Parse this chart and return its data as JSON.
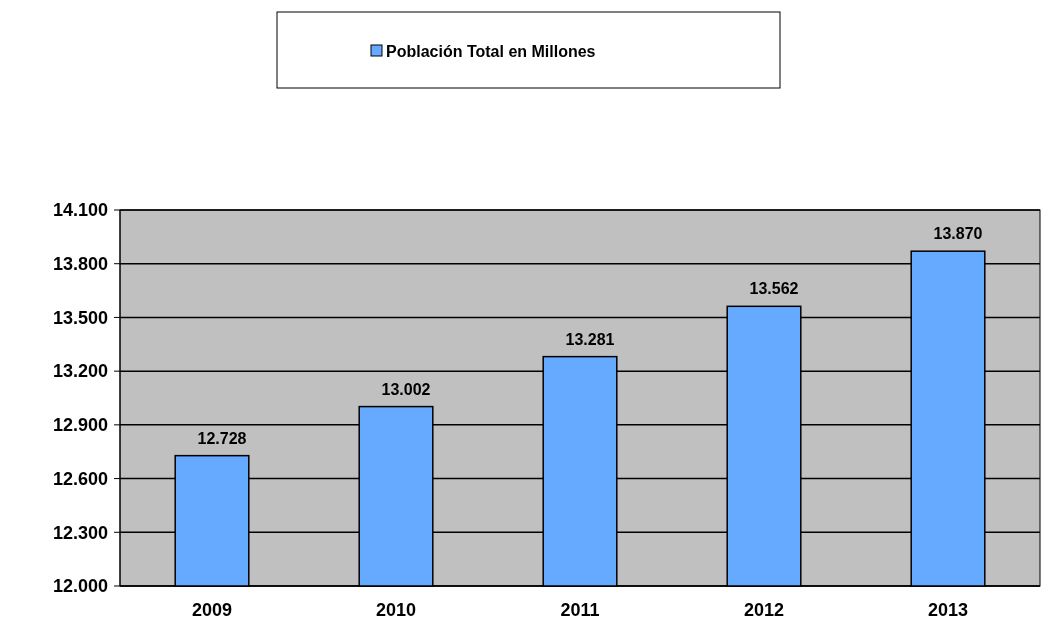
{
  "chart_data": {
    "type": "bar",
    "categories": [
      "2009",
      "2010",
      "2011",
      "2012",
      "2013"
    ],
    "series": [
      {
        "name": "Población Total en Millones",
        "color": "#66aaff",
        "values": [
          12.728,
          13.002,
          13.281,
          13.562,
          13.87
        ],
        "value_labels": [
          "12.728",
          "13.002",
          "13.281",
          "13.562",
          "13.870"
        ]
      }
    ],
    "ylim": [
      12,
      14.1
    ],
    "yticks": [
      {
        "value": 12,
        "label": "12.000"
      },
      {
        "value": 12.3,
        "label": "12.300"
      },
      {
        "value": 12.6,
        "label": "12.600"
      },
      {
        "value": 12.9,
        "label": "12.900"
      },
      {
        "value": 13.2,
        "label": "13.200"
      },
      {
        "value": 13.5,
        "label": "13.500"
      },
      {
        "value": 13.8,
        "label": "13.800"
      },
      {
        "value": 14.1,
        "label": "14.100"
      }
    ],
    "grid": "y",
    "legend": "top"
  }
}
